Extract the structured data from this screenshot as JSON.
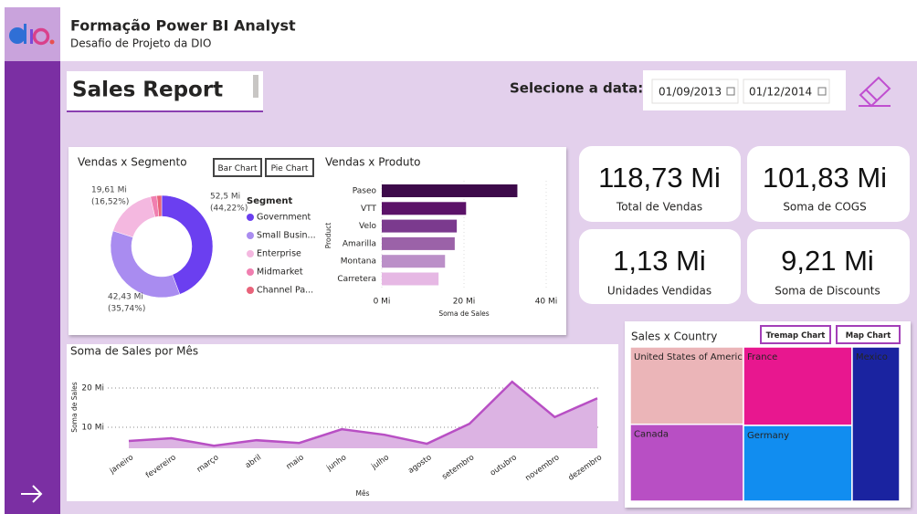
{
  "header": {
    "title": "Formação Power BI Analyst",
    "subtitle": "Desafio de Projeto da DIO"
  },
  "report": {
    "title": "Sales Report",
    "date_prompt": "Selecione a data:",
    "start_date": "01/09/2013",
    "end_date": "01/12/2014"
  },
  "kpis": [
    {
      "value": "118,73 Mi",
      "label": "Total de Vendas"
    },
    {
      "value": "101,83 Mi",
      "label": "Soma de COGS"
    },
    {
      "value": "1,13 Mi",
      "label": "Unidades Vendidas"
    },
    {
      "value": "9,21 Mi",
      "label": "Soma de Discounts"
    }
  ],
  "chart_data": [
    {
      "type": "donut",
      "title": "Vendas x Segmento",
      "buttons": [
        "Bar Chart",
        "Pie Chart"
      ],
      "legend_title": "Segment",
      "legend": "right",
      "categories": [
        "Government",
        "Small Busin...",
        "Enterprise",
        "Midmarket",
        "Channel Pa..."
      ],
      "values": [
        52.5,
        42.43,
        19.61,
        2.38,
        1.8
      ],
      "value_labels": [
        "52,5 Mi",
        "42,43 Mi",
        "19,61 Mi",
        null,
        null
      ],
      "percent_labels": [
        "(44,22%)",
        "(35,74%)",
        "(16,52%)",
        null,
        null
      ],
      "colors": [
        "#6b3ff0",
        "#a98cf0",
        "#f4b8e0",
        "#f07fb0",
        "#e8637a"
      ]
    },
    {
      "type": "hbar",
      "title": "Vendas x Produto",
      "xlabel": "Soma de Sales",
      "ylabel": "Product",
      "grid": true,
      "categories": [
        "Paseo",
        "VTT",
        "Velo",
        "Amarilla",
        "Montana",
        "Carretera"
      ],
      "values": [
        32.99,
        20.51,
        18.25,
        17.75,
        15.39,
        13.82
      ],
      "colors": [
        "#3d0a4a",
        "#5b1268",
        "#7b3a8e",
        "#9b62a8",
        "#bb8fc8",
        "#e6b8e4"
      ],
      "xlim": [
        0,
        42
      ],
      "xticks": [
        {
          "value": 0,
          "label": "0 Mi"
        },
        {
          "value": 20,
          "label": "20 Mi"
        },
        {
          "value": 40,
          "label": "40 Mi"
        }
      ]
    },
    {
      "type": "area",
      "title": "Soma de Sales por Mês",
      "xlabel": "Mês",
      "ylabel": "Soma de Sales",
      "grid": true,
      "categories": [
        "janeiro",
        "fevereiro",
        "março",
        "abril",
        "maio",
        "junho",
        "julho",
        "agosto",
        "setembro",
        "outubro",
        "novembro",
        "dezembro"
      ],
      "values": [
        6.5,
        7.2,
        5.3,
        6.7,
        6.0,
        9.5,
        8.1,
        5.8,
        10.9,
        21.6,
        12.6,
        17.4
      ],
      "color": "#b84fc4",
      "fill": "#dcb3e3",
      "ylim": [
        4.65,
        23.5
      ],
      "yticks": [
        {
          "value": 10,
          "label": "10 Mi"
        },
        {
          "value": 20,
          "label": "20 Mi"
        }
      ]
    },
    {
      "type": "treemap",
      "title": "Sales x Country",
      "buttons": [
        "Tremap Chart",
        "Map Chart"
      ],
      "categories": [
        "United States of America",
        "France",
        "Mexico",
        "Canada",
        "Germany"
      ],
      "values": [
        25.03,
        24.35,
        20.95,
        24.89,
        23.51
      ],
      "colors": [
        "#ebb5b8",
        "#e8178f",
        "#1a23a0",
        "#b84fc4",
        "#118df0"
      ]
    }
  ]
}
